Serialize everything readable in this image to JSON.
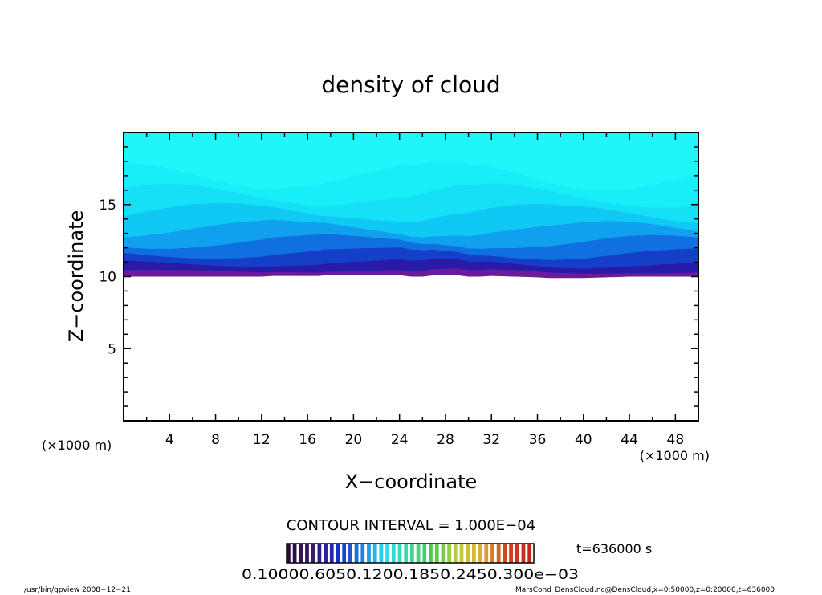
{
  "chart_data": {
    "type": "heatmap",
    "title": "density of cloud",
    "xlabel": "X−coordinate",
    "ylabel": "Z−coordinate",
    "x_unit_left": "(×1000 m)",
    "x_unit_right": "(×1000 m)",
    "xlim": [
      0,
      50
    ],
    "ylim": [
      0,
      20
    ],
    "x_ticks": [
      4,
      8,
      12,
      16,
      20,
      24,
      28,
      32,
      36,
      40,
      44,
      48
    ],
    "y_ticks": [
      5,
      10,
      15
    ],
    "cloud_base_z": [
      [
        0,
        10.0
      ],
      [
        2,
        10.0
      ],
      [
        4,
        10.0
      ],
      [
        6,
        10.0
      ],
      [
        8,
        10.0
      ],
      [
        10,
        10.0
      ],
      [
        12,
        10.0
      ],
      [
        13,
        10.05
      ],
      [
        17,
        10.05
      ],
      [
        17.5,
        10.1
      ],
      [
        24,
        10.1
      ],
      [
        25,
        10.0
      ],
      [
        26,
        10.0
      ],
      [
        27,
        10.1
      ],
      [
        29,
        10.1
      ],
      [
        30,
        10.0
      ],
      [
        31,
        10.0
      ],
      [
        32,
        10.05
      ],
      [
        34,
        10.0
      ],
      [
        36,
        9.95
      ],
      [
        37,
        9.9
      ],
      [
        40,
        9.9
      ],
      [
        42,
        9.95
      ],
      [
        44,
        10.0
      ],
      [
        46,
        10.0
      ],
      [
        48,
        10.0
      ],
      [
        50,
        10.0
      ]
    ],
    "contour_interval_label": "CONTOUR INTERVAL = 1.000E−04",
    "colorbar_labels_text": "0.10000.6050.1200.1850.2450.300e−03",
    "colorbar_segments": 40,
    "colorbar_colors": [
      "#2a0a3a",
      "#3a1a6e",
      "#1a2ac8",
      "#1e7ce0",
      "#30d8f0",
      "#40d8a0",
      "#50c850",
      "#b8d040",
      "#e0b030",
      "#d84020",
      "#c02818"
    ],
    "field_colors": {
      "base": "#6a1a9a",
      "layers": [
        "#2a1aa8",
        "#1440c8",
        "#1070e0",
        "#10a0ee",
        "#10c8f4",
        "#14e0f6",
        "#18eef8",
        "#20f6fa"
      ]
    }
  },
  "timestamp": "t=636000 s",
  "footer_left": "/usr/bin/gpview   2008−12−21",
  "footer_right": "MarsCond_DensCloud.nc@DensCloud,x=0:50000,z=0:20000,t=636000"
}
